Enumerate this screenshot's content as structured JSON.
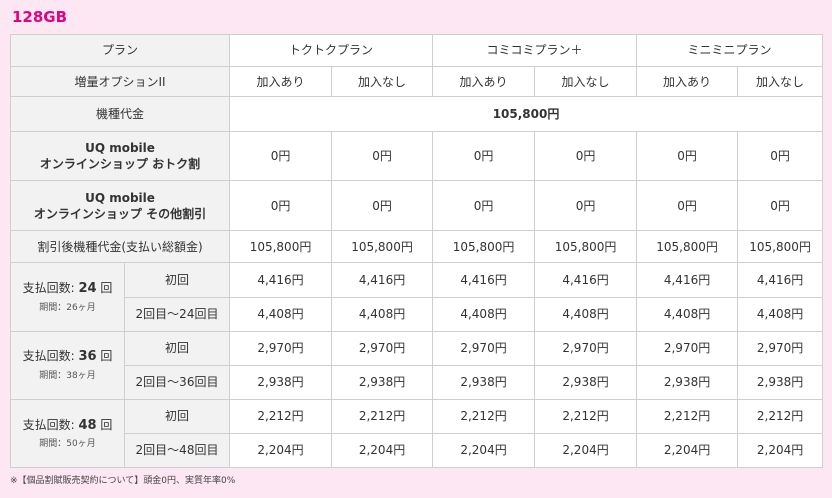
{
  "title": "128GB",
  "table": {
    "plan_label": "プラン",
    "plans": [
      "トクトクプラン",
      "コミコミプラン＋",
      "ミニミニプラン"
    ],
    "option_label": "増量オプションII",
    "option_yes": "加入あり",
    "option_no": "加入なし",
    "device_price_label": "機種代金",
    "device_price": "105,800円",
    "discount1_label_line1": "UQ mobile",
    "discount1_label_line2": "オンラインショップ おトク割",
    "discount1_values": [
      "0円",
      "0円",
      "0円",
      "0円",
      "0円",
      "0円"
    ],
    "discount2_label_line1": "UQ mobile",
    "discount2_label_line2": "オンラインショップ その他割引",
    "discount2_values": [
      "0円",
      "0円",
      "0円",
      "0円",
      "0円",
      "0円"
    ],
    "after_discount_label": "割引後機種代金(支払い総額金)",
    "after_discount_values": [
      "105,800円",
      "105,800円",
      "105,800円",
      "105,800円",
      "105,800円",
      "105,800円"
    ],
    "installments": [
      {
        "label_prefix": "支払回数: ",
        "count": "24",
        "label_suffix": " 回",
        "period": "期間：26ヶ月",
        "first_label": "初回",
        "first_values": [
          "4,416円",
          "4,416円",
          "4,416円",
          "4,416円",
          "4,416円",
          "4,416円"
        ],
        "rest_label": "2回目〜24回目",
        "rest_values": [
          "4,408円",
          "4,408円",
          "4,408円",
          "4,408円",
          "4,408円",
          "4,408円"
        ]
      },
      {
        "label_prefix": "支払回数: ",
        "count": "36",
        "label_suffix": " 回",
        "period": "期間：38ヶ月",
        "first_label": "初回",
        "first_values": [
          "2,970円",
          "2,970円",
          "2,970円",
          "2,970円",
          "2,970円",
          "2,970円"
        ],
        "rest_label": "2回目〜36回目",
        "rest_values": [
          "2,938円",
          "2,938円",
          "2,938円",
          "2,938円",
          "2,938円",
          "2,938円"
        ]
      },
      {
        "label_prefix": "支払回数: ",
        "count": "48",
        "label_suffix": " 回",
        "period": "期間：50ヶ月",
        "first_label": "初回",
        "first_values": [
          "2,212円",
          "2,212円",
          "2,212円",
          "2,212円",
          "2,212円",
          "2,212円"
        ],
        "rest_label": "2回目〜48回目",
        "rest_values": [
          "2,204円",
          "2,204円",
          "2,204円",
          "2,204円",
          "2,204円",
          "2,204円"
        ]
      }
    ]
  },
  "footnote": "※【個品割賦販売契約について】頭金0円、実質年率0%"
}
